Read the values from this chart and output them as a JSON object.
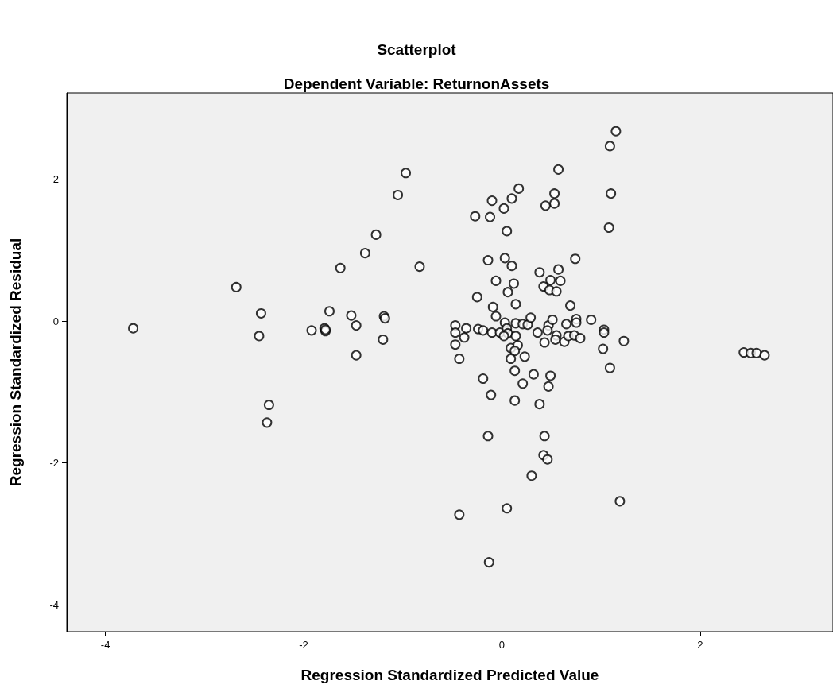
{
  "chart_data": {
    "type": "scatter",
    "title": "Scatterplot",
    "subtitle": "Dependent Variable: ReturnonAssets",
    "xlabel": "Regression Standardized Predicted Value",
    "ylabel": "Regression Standardized Residual",
    "xlim": [
      -4.39,
      3.34
    ],
    "ylim": [
      -4.38,
      3.22
    ],
    "xticks": [
      -4,
      -2,
      0,
      2
    ],
    "yticks": [
      -4,
      -2,
      0,
      2
    ],
    "grid": false,
    "marker": "circle",
    "series": [
      {
        "color": "#000000",
        "x": [
          -3.72,
          -2.68,
          -2.43,
          -2.45,
          -2.35,
          -2.37,
          -1.92,
          -1.79,
          -1.78,
          -1.78,
          -1.74,
          -1.63,
          -1.52,
          -1.47,
          -1.47,
          -1.38,
          -1.27,
          -1.19,
          -1.18,
          -1.2,
          -1.05,
          -0.97,
          -0.83,
          0.57,
          1.15,
          1.09,
          1.1,
          1.08,
          0.17,
          0.1,
          -0.1,
          0.02,
          -0.27,
          -0.12,
          0.05,
          0.53,
          0.53,
          0.44,
          0.74,
          -0.14,
          0.03,
          0.1,
          0.38,
          0.57,
          0.49,
          0.59,
          0.42,
          0.48,
          0.55,
          -0.06,
          0.12,
          0.06,
          -0.25,
          0.14,
          -0.09,
          0.69,
          -0.47,
          -0.36,
          -0.47,
          -0.38,
          -0.47,
          -0.43,
          -0.24,
          -0.19,
          -0.1,
          -0.06,
          -0.02,
          0.03,
          0.05,
          0.06,
          0.02,
          0.14,
          0.14,
          0.21,
          0.26,
          0.29,
          0.09,
          0.16,
          0.13,
          0.09,
          0.23,
          0.13,
          0.32,
          0.49,
          0.21,
          0.47,
          -0.19,
          -0.11,
          0.13,
          0.38,
          0.36,
          0.43,
          0.47,
          0.51,
          0.46,
          0.55,
          0.54,
          0.63,
          0.65,
          0.67,
          0.73,
          0.75,
          0.75,
          0.79,
          0.9,
          1.03,
          1.03,
          1.02,
          1.09,
          1.23,
          -0.14,
          0.43,
          0.42,
          0.46,
          0.3,
          1.19,
          0.05,
          -0.43,
          -0.13,
          2.44,
          2.51,
          2.57,
          2.65
        ],
        "values": [
          -0.1,
          0.48,
          0.11,
          -0.21,
          -1.18,
          -1.43,
          -0.13,
          -0.1,
          -0.14,
          -0.12,
          0.14,
          0.75,
          0.08,
          -0.06,
          -0.48,
          0.96,
          1.22,
          0.07,
          0.04,
          -0.26,
          1.78,
          2.09,
          0.77,
          2.14,
          2.68,
          2.47,
          1.8,
          1.32,
          1.87,
          1.73,
          1.7,
          1.59,
          1.48,
          1.47,
          1.27,
          1.8,
          1.66,
          1.63,
          0.88,
          0.86,
          0.89,
          0.78,
          0.69,
          0.73,
          0.58,
          0.57,
          0.49,
          0.44,
          0.42,
          0.57,
          0.53,
          0.41,
          0.34,
          0.24,
          0.2,
          0.22,
          -0.06,
          -0.1,
          -0.16,
          -0.23,
          -0.33,
          -0.53,
          -0.11,
          -0.13,
          -0.16,
          0.07,
          -0.16,
          -0.02,
          -0.1,
          -0.17,
          -0.21,
          -0.03,
          -0.21,
          -0.04,
          -0.05,
          0.05,
          -0.38,
          -0.34,
          -0.42,
          -0.53,
          -0.5,
          -0.7,
          -0.75,
          -0.77,
          -0.88,
          -0.92,
          -0.81,
          -1.04,
          -1.12,
          -1.17,
          -0.16,
          -0.3,
          -0.06,
          0.02,
          -0.13,
          -0.2,
          -0.26,
          -0.29,
          -0.04,
          -0.21,
          -0.2,
          0.03,
          -0.02,
          -0.24,
          0.02,
          -0.12,
          -0.16,
          -0.39,
          -0.66,
          -0.28,
          -1.62,
          -1.62,
          -1.89,
          -1.95,
          -2.18,
          -2.54,
          -2.64,
          -2.73,
          -3.4,
          -0.44,
          -0.45,
          -0.45,
          -0.48
        ]
      }
    ]
  }
}
